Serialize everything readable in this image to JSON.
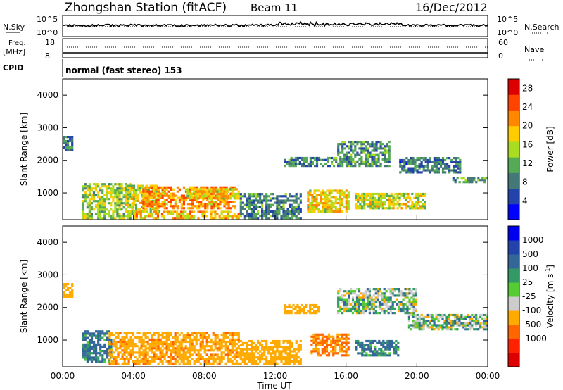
{
  "header": {
    "title": "Zhongshan Station (fitACF)",
    "beam": "Beam 11",
    "date": "16/Dec/2012"
  },
  "top_panels": {
    "nsky_label": "N.Sky",
    "nsky_ticks": [
      "10^5",
      "10^0"
    ],
    "nsearch_label": "N.Search",
    "nsearch_ticks": [
      "10^5",
      "10^0"
    ],
    "freq_label_1": "Freq.",
    "freq_label_2": "[MHz]",
    "freq_ticks": [
      "18",
      "8"
    ],
    "nave_label": "Nave",
    "nave_ticks": [
      "60",
      "0"
    ],
    "cpid_label": "CPID",
    "cpid_text": "normal (fast stereo) 153"
  },
  "colors": {
    "power_scale": [
      "#0000ff",
      "#2244aa",
      "#447777",
      "#55aa55",
      "#aadd22",
      "#ffcc00",
      "#ff8800",
      "#ff4400",
      "#dd0000"
    ],
    "velocity_scale": [
      "#0000ee",
      "#2244aa",
      "#336699",
      "#339966",
      "#55cc33",
      "#cccccc",
      "#ffaa00",
      "#ff6600",
      "#ff2200",
      "#dd0000"
    ]
  },
  "chart_data": [
    {
      "type": "heatmap",
      "ylabel": "Slant Range [km]",
      "yticks": [
        "1000",
        "2000",
        "3000",
        "4000"
      ],
      "ylim": [
        180,
        4500
      ],
      "xlabel": "",
      "xlim": [
        "00:00",
        "24:00"
      ],
      "colorbar_label": "Power [dB]",
      "colorbar_ticks": [
        "4",
        "8",
        "12",
        "16",
        "20",
        "24",
        "28"
      ],
      "colorbar_range": [
        0,
        30
      ],
      "regions": [
        {
          "t0": 0.0,
          "t1": 0.6,
          "r0": 2300,
          "r1": 2750,
          "v": 8
        },
        {
          "t0": 1.1,
          "t1": 4.0,
          "r0": 200,
          "r1": 1300,
          "v": 14
        },
        {
          "t0": 3.5,
          "t1": 5.5,
          "r0": 400,
          "r1": 1250,
          "v": 16
        },
        {
          "t0": 4.5,
          "t1": 9.8,
          "r0": 500,
          "r1": 1200,
          "v": 21
        },
        {
          "t0": 4.0,
          "t1": 10.0,
          "r0": 200,
          "r1": 450,
          "v": 19
        },
        {
          "t0": 7.0,
          "t1": 10.0,
          "r0": 800,
          "r1": 1150,
          "v": 18
        },
        {
          "t0": 10.0,
          "t1": 13.5,
          "r0": 200,
          "r1": 1000,
          "v": 9
        },
        {
          "t0": 12.5,
          "t1": 15.5,
          "r0": 1800,
          "r1": 2100,
          "v": 9
        },
        {
          "t0": 13.8,
          "t1": 16.2,
          "r0": 400,
          "r1": 1100,
          "v": 18
        },
        {
          "t0": 15.5,
          "t1": 18.5,
          "r0": 1800,
          "r1": 2600,
          "v": 10
        },
        {
          "t0": 16.5,
          "t1": 20.5,
          "r0": 500,
          "r1": 1000,
          "v": 16
        },
        {
          "t0": 19.0,
          "t1": 22.5,
          "r0": 1600,
          "r1": 2100,
          "v": 8
        },
        {
          "t0": 22.0,
          "t1": 24.0,
          "r0": 1300,
          "r1": 1500,
          "v": 10
        }
      ]
    },
    {
      "type": "heatmap",
      "ylabel": "Slant Range [km]",
      "yticks": [
        "1000",
        "2000",
        "3000",
        "4000"
      ],
      "ylim": [
        180,
        4500
      ],
      "xlabel": "Time UT",
      "xticks": [
        "00:00",
        "04:00",
        "08:00",
        "12:00",
        "16:00",
        "20:00",
        "00:00"
      ],
      "xlim": [
        "00:00",
        "24:00"
      ],
      "colorbar_label": "Velocity [m s",
      "colorbar_label_sup": "-1",
      "colorbar_label_end": "]",
      "colorbar_ticks": [
        "1000",
        "500",
        "100",
        "25",
        "-25",
        "-100",
        "-500",
        "-1000"
      ],
      "regions": [
        {
          "t0": 0.0,
          "t1": 0.6,
          "r0": 2300,
          "r1": 2750,
          "v": -300
        },
        {
          "t0": 1.1,
          "t1": 2.8,
          "r0": 300,
          "r1": 1300,
          "v": 150
        },
        {
          "t0": 2.6,
          "t1": 10.0,
          "r0": 250,
          "r1": 1250,
          "v": -400
        },
        {
          "t0": 10.0,
          "t1": 13.5,
          "r0": 250,
          "r1": 1000,
          "v": -300
        },
        {
          "t0": 12.5,
          "t1": 14.5,
          "r0": 1800,
          "r1": 2100,
          "v": -300
        },
        {
          "t0": 14.0,
          "t1": 16.2,
          "r0": 500,
          "r1": 1200,
          "v": -500
        },
        {
          "t0": 15.5,
          "t1": 20.0,
          "r0": 1800,
          "r1": 2600,
          "v": 0
        },
        {
          "t0": 16.5,
          "t1": 19.0,
          "r0": 500,
          "r1": 1000,
          "v": 150
        },
        {
          "t0": 19.5,
          "t1": 24.0,
          "r0": 1300,
          "r1": 1800,
          "v": 0
        }
      ]
    }
  ]
}
